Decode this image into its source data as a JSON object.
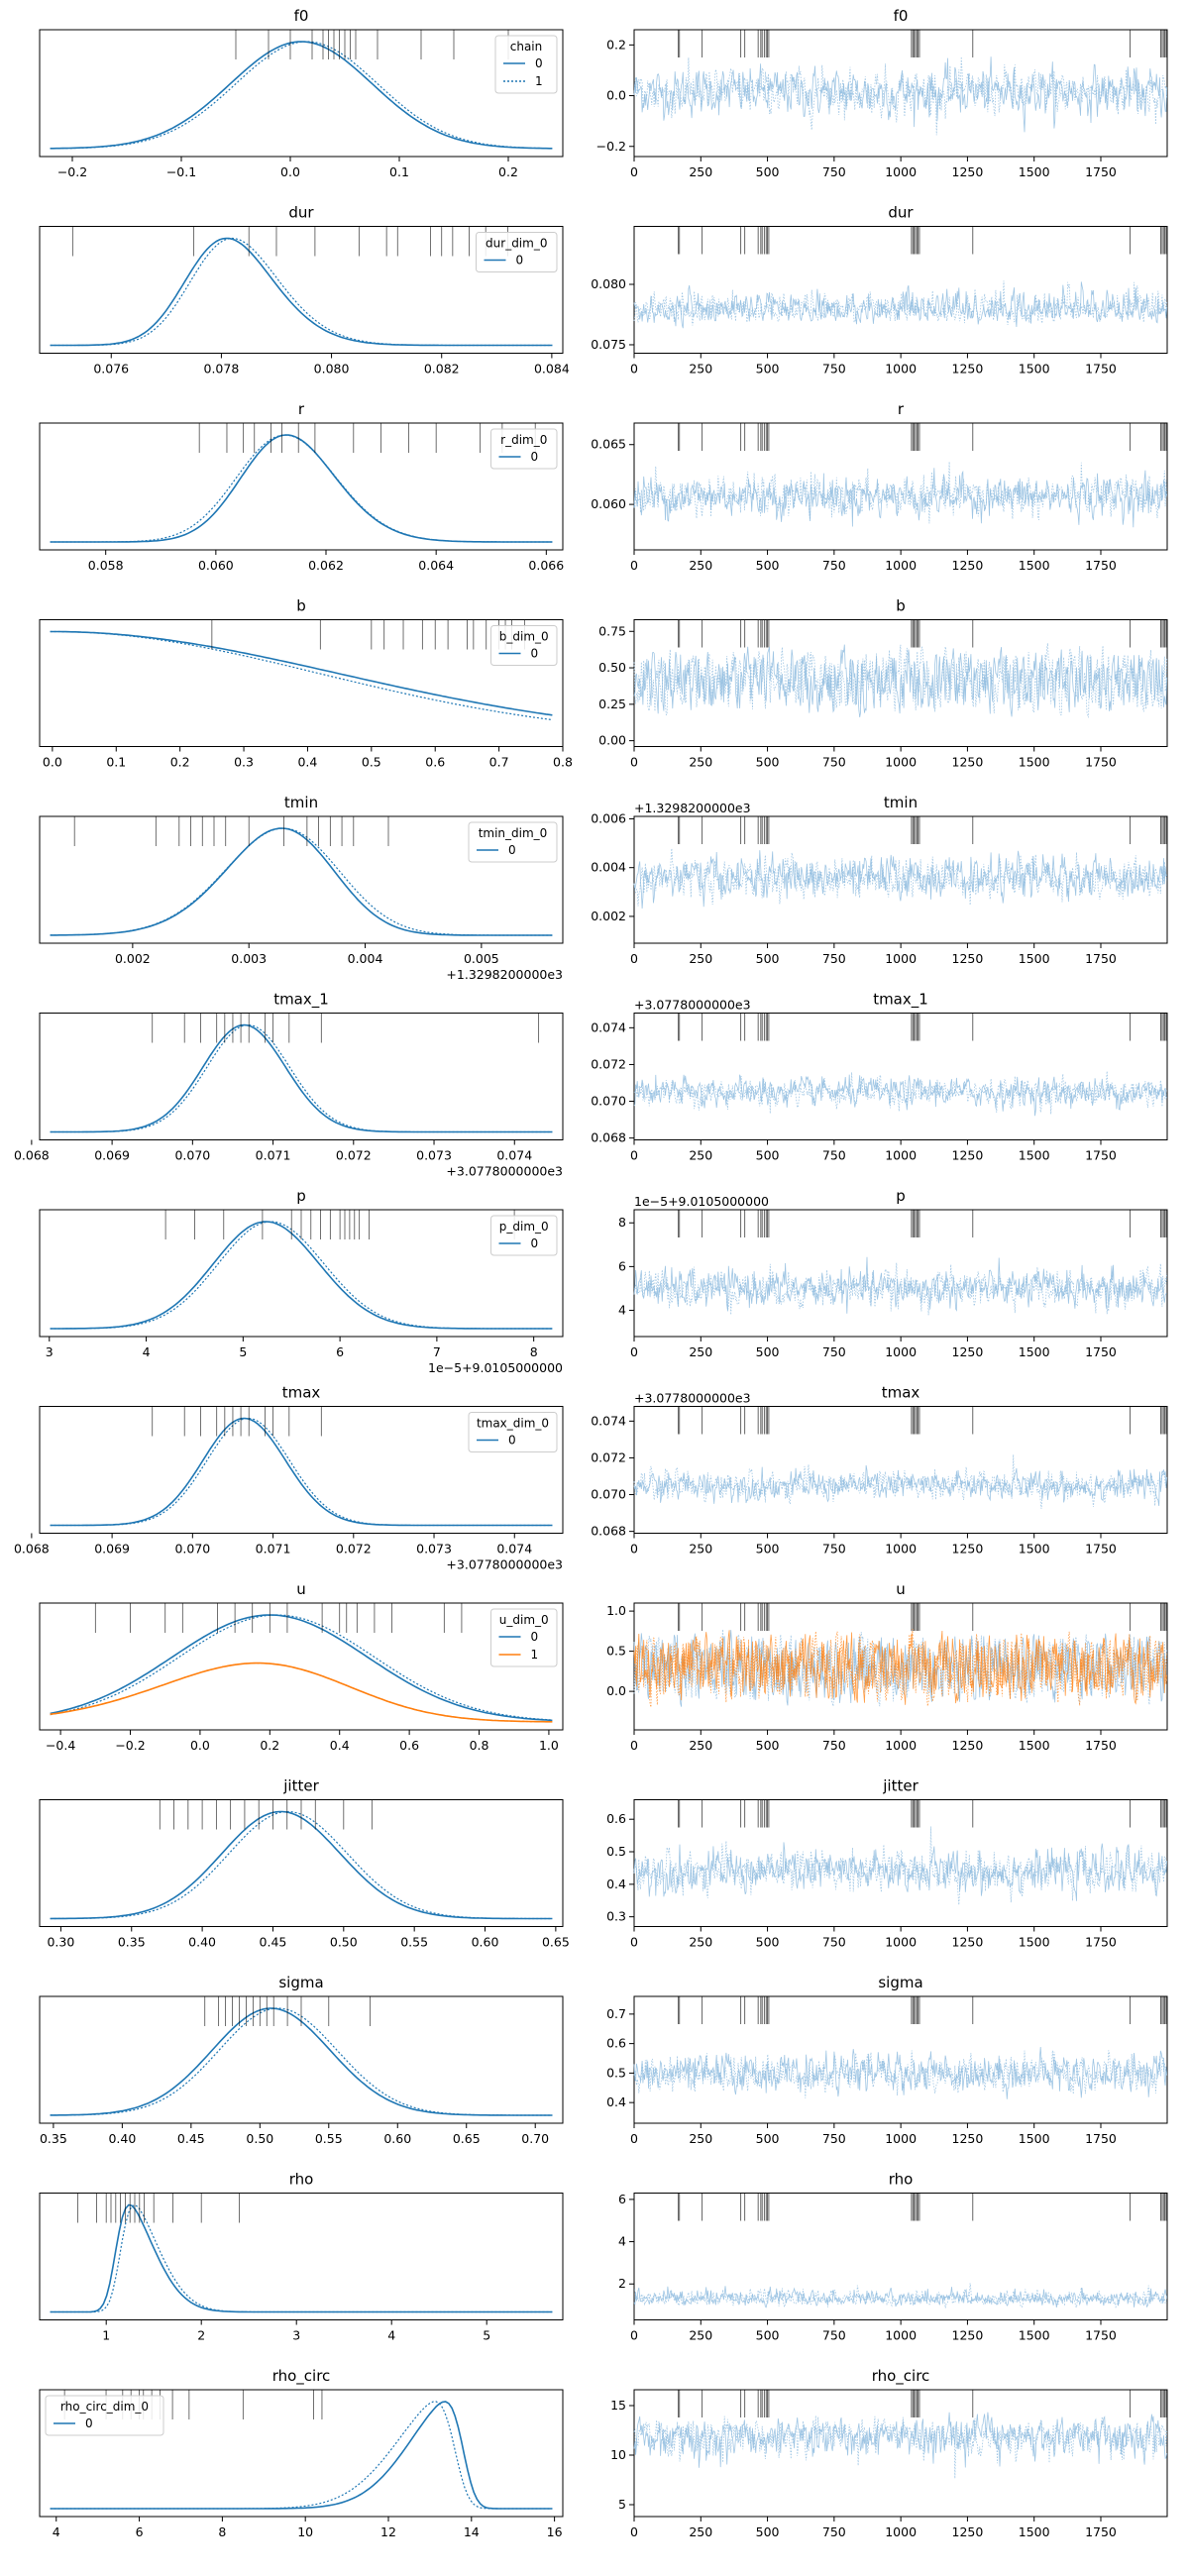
{
  "colors": {
    "chain0": "#1f77b4",
    "chain1": "#1f77b4",
    "dim1": "#ff7f0e",
    "trace": "#8fbcdf",
    "trace_dim1": "#ff7f0e",
    "rug": "#000000"
  },
  "chart_data": [
    {
      "type": "area",
      "title": "f0",
      "xlim": [
        -0.23,
        0.25
      ],
      "xticks": [
        -0.2,
        -0.1,
        0.0,
        0.1,
        0.2
      ],
      "xtick_labels": [
        "−0.2",
        "−0.1",
        "0.0",
        "0.1",
        "0.2"
      ],
      "offset": "",
      "legend": {
        "title": "chain",
        "entries": [
          "0",
          "1"
        ],
        "placement": "top-right"
      },
      "density": [
        {
          "mean": 0.01,
          "sd": 0.065,
          "skew": 0,
          "dashed": false
        },
        {
          "mean": 0.015,
          "sd": 0.065,
          "skew": 0,
          "dashed": true
        }
      ],
      "rug": [
        -0.05,
        -0.02,
        0.0,
        0.02,
        0.03,
        0.035,
        0.04,
        0.045,
        0.05,
        0.055,
        0.06,
        0.08,
        0.12,
        0.15,
        0.2
      ]
    },
    {
      "type": "area",
      "title": "dur",
      "xlim": [
        0.0747,
        0.0842
      ],
      "xticks": [
        0.076,
        0.078,
        0.08,
        0.082,
        0.084
      ],
      "xtick_labels": [
        "0.076",
        "0.078",
        "0.080",
        "0.082",
        "0.084"
      ],
      "offset": "",
      "legend": {
        "title": "dur_dim_0",
        "entries": [
          "0"
        ],
        "placement": "top-right"
      },
      "density": [
        {
          "mean": 0.0775,
          "sd": 0.0011,
          "skew": 1.5,
          "dashed": false
        },
        {
          "mean": 0.0776,
          "sd": 0.0011,
          "skew": 1.5,
          "dashed": true
        }
      ],
      "rug": [
        0.0753,
        0.0775,
        0.0785,
        0.079,
        0.0797,
        0.0805,
        0.081,
        0.0812,
        0.0818,
        0.082,
        0.0822,
        0.0825,
        0.0828,
        0.0832
      ]
    },
    {
      "type": "area",
      "title": "r",
      "xlim": [
        0.0568,
        0.0663
      ],
      "xticks": [
        0.058,
        0.06,
        0.062,
        0.064,
        0.066
      ],
      "xtick_labels": [
        "0.058",
        "0.060",
        "0.062",
        "0.064",
        "0.066"
      ],
      "offset": "",
      "legend": {
        "title": "r_dim_0",
        "entries": [
          "0"
        ],
        "placement": "top-right"
      },
      "density": [
        {
          "mean": 0.0607,
          "sd": 0.0011,
          "skew": 1.2,
          "dashed": false
        },
        {
          "mean": 0.0607,
          "sd": 0.0011,
          "skew": 1.0,
          "dashed": true
        }
      ],
      "rug": [
        0.0597,
        0.0602,
        0.0605,
        0.0607,
        0.061,
        0.0612,
        0.0615,
        0.0618,
        0.0625,
        0.063,
        0.0635,
        0.064,
        0.0648,
        0.0652,
        0.0658
      ]
    },
    {
      "type": "area",
      "title": "b",
      "xlim": [
        -0.02,
        0.8
      ],
      "xticks": [
        0.0,
        0.1,
        0.2,
        0.3,
        0.4,
        0.5,
        0.6,
        0.7,
        0.8
      ],
      "xtick_labels": [
        "0.0",
        "0.1",
        "0.2",
        "0.3",
        "0.4",
        "0.5",
        "0.6",
        "0.7",
        "0.8"
      ],
      "offset": "",
      "legend": {
        "title": "b_dim_0",
        "entries": [
          "0"
        ],
        "placement": "top-right"
      },
      "density": [
        {
          "mean": 0.0,
          "sd": 0.45,
          "skew": 0,
          "dashed": false,
          "halfnormal": true
        },
        {
          "mean": 0.0,
          "sd": 0.42,
          "skew": 0,
          "dashed": true,
          "halfnormal": true
        }
      ],
      "rug": [
        0.25,
        0.42,
        0.5,
        0.52,
        0.55,
        0.58,
        0.6,
        0.62,
        0.65,
        0.66,
        0.68,
        0.7,
        0.71,
        0.72,
        0.74
      ]
    },
    {
      "type": "area",
      "title": "tmin",
      "xlim": [
        0.0012,
        0.0057
      ],
      "xticks": [
        0.002,
        0.003,
        0.004,
        0.005
      ],
      "xtick_labels": [
        "0.002",
        "0.003",
        "0.004",
        "0.005"
      ],
      "offset": "+1.3298200000e3",
      "legend": {
        "title": "tmin_dim_0",
        "entries": [
          "0"
        ],
        "placement": "top-right"
      },
      "density": [
        {
          "mean": 0.0036,
          "sd": 0.0006,
          "skew": -1.2,
          "dashed": false
        },
        {
          "mean": 0.0036,
          "sd": 0.0006,
          "skew": -1.0,
          "dashed": true
        }
      ],
      "rug": [
        0.0015,
        0.0022,
        0.0024,
        0.0025,
        0.0026,
        0.0027,
        0.0028,
        0.003,
        0.0033,
        0.0035,
        0.0036,
        0.0037,
        0.0038,
        0.0039,
        0.0042
      ]
    },
    {
      "type": "area",
      "title": "tmax_1",
      "xlim": [
        0.0681,
        0.0746
      ],
      "xticks": [
        0.068,
        0.069,
        0.07,
        0.071,
        0.072,
        0.073,
        0.074
      ],
      "xtick_labels": [
        "0.068",
        "0.069",
        "0.070",
        "0.071",
        "0.072",
        "0.073",
        "0.074"
      ],
      "offset": "+3.0778000000e3",
      "density": [
        {
          "mean": 0.07045,
          "sd": 0.00055,
          "skew": 0.5,
          "dashed": false
        },
        {
          "mean": 0.0705,
          "sd": 0.00055,
          "skew": 0.5,
          "dashed": true
        }
      ],
      "rug": [
        0.0695,
        0.0699,
        0.0701,
        0.0703,
        0.0704,
        0.0705,
        0.0706,
        0.0707,
        0.0709,
        0.071,
        0.0712,
        0.0716,
        0.0743
      ]
    },
    {
      "type": "area",
      "title": "p",
      "xlim": [
        2.9,
        8.3
      ],
      "xticks": [
        3,
        4,
        5,
        6,
        7,
        8
      ],
      "xtick_labels": [
        "3",
        "4",
        "5",
        "6",
        "7",
        "8"
      ],
      "offset": "1e−5+9.0105000000",
      "legend": {
        "title": "p_dim_0",
        "entries": [
          "0"
        ],
        "placement": "top-right"
      },
      "density": [
        {
          "mean": 5.0,
          "sd": 0.6,
          "skew": 0.6,
          "dashed": false
        },
        {
          "mean": 5.05,
          "sd": 0.6,
          "skew": 0.6,
          "dashed": true
        }
      ],
      "rug": [
        4.2,
        4.5,
        4.8,
        5.2,
        5.5,
        5.6,
        5.7,
        5.8,
        5.9,
        6.0,
        6.05,
        6.1,
        6.15,
        6.2,
        6.3,
        7.8
      ]
    },
    {
      "type": "area",
      "title": "tmax",
      "xlim": [
        0.0681,
        0.0746
      ],
      "xticks": [
        0.068,
        0.069,
        0.07,
        0.071,
        0.072,
        0.073,
        0.074
      ],
      "xtick_labels": [
        "0.068",
        "0.069",
        "0.070",
        "0.071",
        "0.072",
        "0.073",
        "0.074"
      ],
      "offset": "+3.0778000000e3",
      "legend": {
        "title": "tmax_dim_0",
        "entries": [
          "0"
        ],
        "placement": "top-right"
      },
      "density": [
        {
          "mean": 0.07045,
          "sd": 0.00055,
          "skew": 0.5,
          "dashed": false
        },
        {
          "mean": 0.0705,
          "sd": 0.00055,
          "skew": 0.5,
          "dashed": true
        }
      ],
      "rug": [
        0.0695,
        0.0699,
        0.0701,
        0.0703,
        0.0704,
        0.0705,
        0.0706,
        0.0707,
        0.0709,
        0.071,
        0.0712,
        0.0716
      ]
    },
    {
      "type": "area",
      "title": "u",
      "xlim": [
        -0.46,
        1.04
      ],
      "xticks": [
        -0.4,
        -0.2,
        0.0,
        0.2,
        0.4,
        0.6,
        0.8,
        1.0
      ],
      "xtick_labels": [
        "−0.4",
        "−0.2",
        "0.0",
        "0.2",
        "0.4",
        "0.6",
        "0.8",
        "1.0"
      ],
      "offset": "",
      "legend": {
        "title": "u_dim_0",
        "entries": [
          "0",
          "1"
        ],
        "placement": "top-right"
      },
      "density": [
        {
          "mean": 0.2,
          "sd": 0.28,
          "skew": 0,
          "dashed": false,
          "flat": 0.85
        },
        {
          "mean": 0.22,
          "sd": 0.28,
          "skew": 0,
          "dashed": true,
          "flat": 0.85
        },
        {
          "mean": 0.35,
          "sd": 0.35,
          "skew": -1.2,
          "dashed": false,
          "series": 1,
          "scale": 0.55
        },
        {
          "mean": 0.35,
          "sd": 0.35,
          "skew": -1.2,
          "dashed": true,
          "series": 1,
          "scale": 0.55
        }
      ],
      "rug": [
        -0.3,
        -0.2,
        -0.1,
        -0.05,
        0.05,
        0.1,
        0.15,
        0.2,
        0.25,
        0.35,
        0.4,
        0.42,
        0.45,
        0.5,
        0.55,
        0.7,
        0.75
      ]
    },
    {
      "type": "area",
      "title": "jitter",
      "xlim": [
        0.285,
        0.655
      ],
      "xticks": [
        0.3,
        0.35,
        0.4,
        0.45,
        0.5,
        0.55,
        0.6,
        0.65
      ],
      "xtick_labels": [
        "0.30",
        "0.35",
        "0.40",
        "0.45",
        "0.50",
        "0.55",
        "0.60",
        "0.65"
      ],
      "offset": "",
      "density": [
        {
          "mean": 0.44,
          "sd": 0.045,
          "skew": 0.5,
          "dashed": false
        },
        {
          "mean": 0.445,
          "sd": 0.045,
          "skew": 0.5,
          "dashed": true
        }
      ],
      "rug": [
        0.37,
        0.38,
        0.39,
        0.4,
        0.41,
        0.42,
        0.43,
        0.44,
        0.45,
        0.46,
        0.47,
        0.48,
        0.5,
        0.52
      ]
    },
    {
      "type": "area",
      "title": "sigma",
      "xlim": [
        0.34,
        0.72
      ],
      "xticks": [
        0.35,
        0.4,
        0.45,
        0.5,
        0.55,
        0.6,
        0.65,
        0.7
      ],
      "xtick_labels": [
        "0.35",
        "0.40",
        "0.45",
        "0.50",
        "0.55",
        "0.60",
        "0.65",
        "0.70"
      ],
      "offset": "",
      "density": [
        {
          "mean": 0.495,
          "sd": 0.045,
          "skew": 0.4,
          "dashed": false
        },
        {
          "mean": 0.5,
          "sd": 0.045,
          "skew": 0.4,
          "dashed": true
        }
      ],
      "rug": [
        0.46,
        0.47,
        0.475,
        0.48,
        0.485,
        0.49,
        0.495,
        0.5,
        0.505,
        0.51,
        0.52,
        0.53,
        0.55,
        0.58
      ]
    },
    {
      "type": "area",
      "title": "rho",
      "xlim": [
        0.3,
        5.8
      ],
      "xticks": [
        1,
        2,
        3,
        4,
        5
      ],
      "xtick_labels": [
        "1",
        "2",
        "3",
        "4",
        "5"
      ],
      "offset": "",
      "density": [
        {
          "mean": 1.1,
          "sd": 0.35,
          "skew": 4,
          "dashed": false
        },
        {
          "mean": 1.15,
          "sd": 0.35,
          "skew": 4,
          "dashed": true
        }
      ],
      "rug": [
        0.7,
        0.9,
        1.0,
        1.05,
        1.1,
        1.15,
        1.2,
        1.25,
        1.3,
        1.35,
        1.4,
        1.5,
        1.7,
        2.0,
        2.4
      ]
    },
    {
      "type": "area",
      "title": "rho_circ",
      "xlim": [
        3.6,
        16.2
      ],
      "xticks": [
        4,
        6,
        8,
        10,
        12,
        14,
        16
      ],
      "xtick_labels": [
        "4",
        "6",
        "8",
        "10",
        "12",
        "14",
        "16"
      ],
      "offset": "",
      "legend": {
        "title": "rho_circ_dim_0",
        "entries": [
          "0"
        ],
        "placement": "top-left"
      },
      "density": [
        {
          "mean": 13.8,
          "sd": 1.2,
          "skew": -5,
          "dashed": false
        },
        {
          "mean": 13.6,
          "sd": 1.3,
          "skew": -5,
          "dashed": true
        }
      ],
      "rug": [
        4.2,
        5.2,
        5.6,
        5.8,
        6.0,
        6.1,
        6.3,
        6.5,
        6.8,
        7.2,
        8.5,
        10.2,
        10.4
      ]
    }
  ],
  "trace_data": [
    {
      "title": "f0",
      "ylim": [
        -0.24,
        0.26
      ],
      "yticks": [
        -0.2,
        0.0,
        0.2
      ],
      "ytick_labels": [
        "−0.2",
        "0.0",
        "0.2"
      ],
      "offset": "",
      "center": 0.015,
      "spread": 0.065,
      "noise": "normal"
    },
    {
      "title": "dur",
      "ylim": [
        0.0743,
        0.0848
      ],
      "yticks": [
        0.075,
        0.08
      ],
      "ytick_labels": [
        "0.075",
        "0.080"
      ],
      "offset": "",
      "center": 0.0776,
      "spread": 0.0012,
      "noise": "skewright"
    },
    {
      "title": "r",
      "ylim": [
        0.0562,
        0.0668
      ],
      "yticks": [
        0.06,
        0.065
      ],
      "ytick_labels": [
        "0.060",
        "0.065"
      ],
      "offset": "",
      "center": 0.0607,
      "spread": 0.0012,
      "noise": "normal"
    },
    {
      "title": "b",
      "ylim": [
        -0.04,
        0.83
      ],
      "yticks": [
        0.0,
        0.25,
        0.5,
        0.75
      ],
      "ytick_labels": [
        "0.00",
        "0.25",
        "0.50",
        "0.75"
      ],
      "offset": "",
      "center": 0.3,
      "spread": 0.2,
      "noise": "uniformpos"
    },
    {
      "title": "tmin",
      "ylim": [
        0.0009,
        0.0061
      ],
      "yticks": [
        0.002,
        0.004,
        0.006
      ],
      "ytick_labels": [
        "0.002",
        "0.004",
        "0.006"
      ],
      "offset": "+1.3298200000e3",
      "center": 0.0036,
      "spread": 0.0006,
      "noise": "normal"
    },
    {
      "title": "tmax_1",
      "ylim": [
        0.0679,
        0.0748
      ],
      "yticks": [
        0.068,
        0.07,
        0.072,
        0.074
      ],
      "ytick_labels": [
        "0.068",
        "0.070",
        "0.072",
        "0.074"
      ],
      "offset": "+3.0778000000e3",
      "center": 0.0705,
      "spread": 0.00055,
      "noise": "normal"
    },
    {
      "title": "p",
      "ylim": [
        2.8,
        8.6
      ],
      "yticks": [
        4,
        6,
        8
      ],
      "ytick_labels": [
        "4",
        "6",
        "8"
      ],
      "offset": "1e−5+9.0105000000",
      "center": 5.0,
      "spread": 0.6,
      "noise": "normal"
    },
    {
      "title": "tmax",
      "ylim": [
        0.0679,
        0.0748
      ],
      "yticks": [
        0.068,
        0.07,
        0.072,
        0.074
      ],
      "ytick_labels": [
        "0.068",
        "0.070",
        "0.072",
        "0.074"
      ],
      "offset": "+3.0778000000e3",
      "center": 0.0705,
      "spread": 0.00055,
      "noise": "normal"
    },
    {
      "title": "u",
      "ylim": [
        -0.48,
        1.1
      ],
      "yticks": [
        0.0,
        0.5,
        1.0
      ],
      "ytick_labels": [
        "0.0",
        "0.5",
        "1.0"
      ],
      "offset": "",
      "center": 0.3,
      "spread": 0.3,
      "noise": "wide",
      "two_series": true
    },
    {
      "title": "jitter",
      "ylim": [
        0.27,
        0.66
      ],
      "yticks": [
        0.3,
        0.4,
        0.5,
        0.6
      ],
      "ytick_labels": [
        "0.3",
        "0.4",
        "0.5",
        "0.6"
      ],
      "offset": "",
      "center": 0.44,
      "spread": 0.045,
      "noise": "normal"
    },
    {
      "title": "sigma",
      "ylim": [
        0.33,
        0.76
      ],
      "yticks": [
        0.4,
        0.5,
        0.6,
        0.7
      ],
      "ytick_labels": [
        "0.4",
        "0.5",
        "0.6",
        "0.7"
      ],
      "offset": "",
      "center": 0.5,
      "spread": 0.045,
      "noise": "normal"
    },
    {
      "title": "rho",
      "ylim": [
        0.3,
        6.3
      ],
      "yticks": [
        2,
        4,
        6
      ],
      "ytick_labels": [
        "2",
        "4",
        "6"
      ],
      "offset": "",
      "center": 1.2,
      "spread": 0.35,
      "noise": "skewright"
    },
    {
      "title": "rho_circ",
      "ylim": [
        3.8,
        16.6
      ],
      "yticks": [
        5,
        10,
        15
      ],
      "ytick_labels": [
        "5",
        "10",
        "15"
      ],
      "offset": "",
      "center": 12.5,
      "spread": 1.8,
      "noise": "skewleft"
    }
  ],
  "trace_x": {
    "xlim": [
      0,
      1999
    ],
    "xticks": [
      0,
      250,
      500,
      750,
      1000,
      1250,
      1500,
      1750
    ],
    "xtick_labels": [
      "0",
      "250",
      "500",
      "750",
      "1000",
      "1250",
      "1500",
      "1750"
    ]
  },
  "divergence_draws": [
    165,
    170,
    255,
    400,
    415,
    465,
    475,
    480,
    488,
    495,
    500,
    505,
    1040,
    1045,
    1050,
    1055,
    1060,
    1065,
    1070,
    1270,
    1860,
    1975,
    1980,
    1985,
    1990,
    1995
  ]
}
